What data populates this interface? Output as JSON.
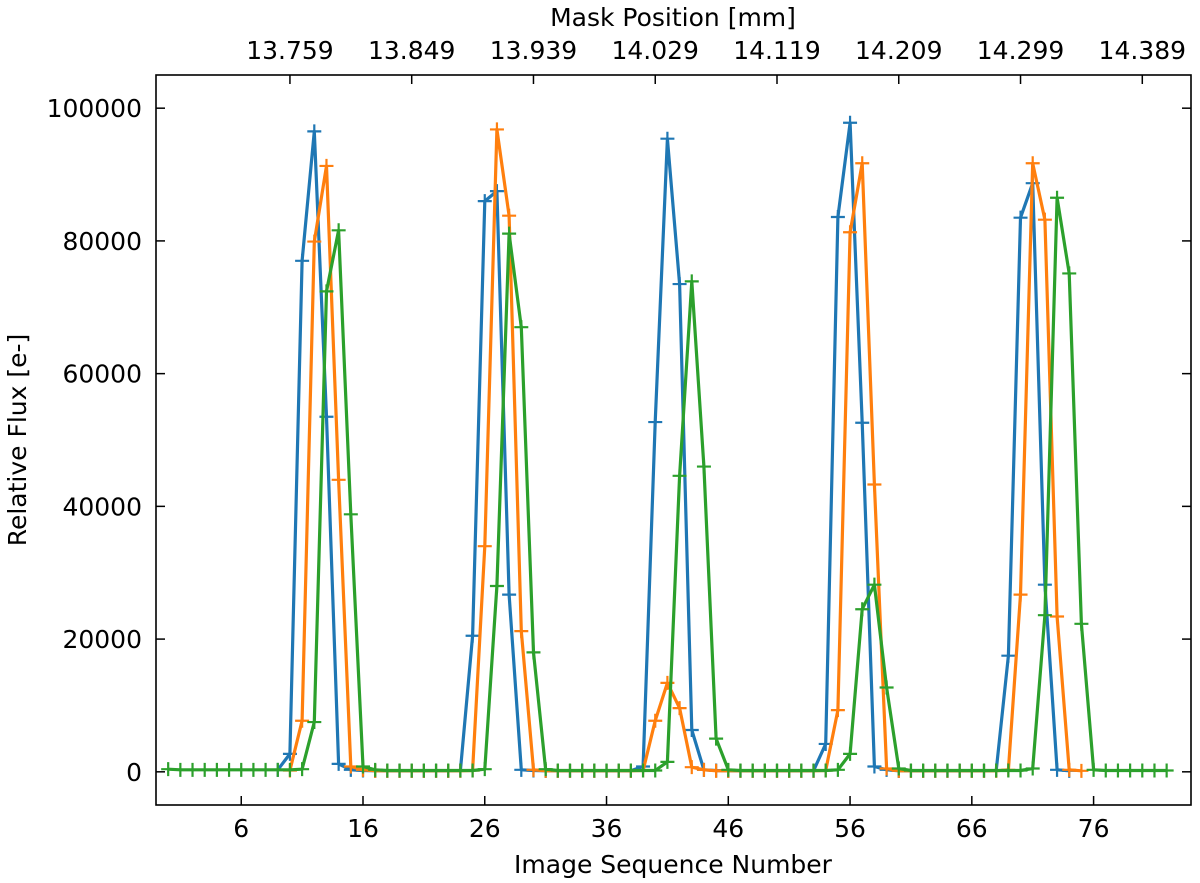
{
  "chart_data": {
    "type": "line",
    "xlabel": "Image Sequence Number",
    "ylabel": "Relative Flux [e-]",
    "top_xlabel": "Mask Position [mm]",
    "xlim": [
      -1,
      84
    ],
    "ylim": [
      -5000,
      105000
    ],
    "grid": false,
    "x_ticks": [
      6,
      16,
      26,
      36,
      46,
      56,
      66,
      76
    ],
    "y_ticks": [
      0,
      20000,
      40000,
      60000,
      80000,
      100000
    ],
    "top_ticks": [
      {
        "x": 10,
        "label": "13.759"
      },
      {
        "x": 20,
        "label": "13.849"
      },
      {
        "x": 30,
        "label": "13.939"
      },
      {
        "x": 40,
        "label": "14.029"
      },
      {
        "x": 50,
        "label": "14.119"
      },
      {
        "x": 60,
        "label": "14.209"
      },
      {
        "x": 70,
        "label": "14.299"
      },
      {
        "x": 80,
        "label": "14.389"
      }
    ],
    "series": [
      {
        "color": "#1f77b4",
        "points": [
          [
            9,
            300
          ],
          [
            10,
            2700
          ],
          [
            11,
            77000
          ],
          [
            12,
            96500
          ],
          [
            13,
            53500
          ],
          [
            14,
            1200
          ],
          [
            15,
            300
          ],
          [
            16,
            200
          ],
          [
            17,
            150
          ],
          [
            18,
            150
          ],
          [
            19,
            150
          ],
          [
            20,
            150
          ],
          [
            21,
            150
          ],
          [
            22,
            150
          ],
          [
            23,
            150
          ],
          [
            24,
            200
          ],
          [
            25,
            20500
          ],
          [
            26,
            86000
          ],
          [
            27,
            87500
          ],
          [
            28,
            26700
          ],
          [
            29,
            300
          ],
          [
            30,
            200
          ],
          [
            31,
            150
          ],
          [
            32,
            150
          ],
          [
            33,
            150
          ],
          [
            34,
            150
          ],
          [
            35,
            150
          ],
          [
            36,
            150
          ],
          [
            37,
            150
          ],
          [
            38,
            150
          ],
          [
            39,
            800
          ],
          [
            40,
            52700
          ],
          [
            41,
            95400
          ],
          [
            42,
            73500
          ],
          [
            43,
            6300
          ],
          [
            44,
            300
          ],
          [
            45,
            200
          ],
          [
            46,
            150
          ],
          [
            47,
            150
          ],
          [
            48,
            150
          ],
          [
            49,
            150
          ],
          [
            50,
            150
          ],
          [
            51,
            150
          ],
          [
            52,
            150
          ],
          [
            53,
            150
          ],
          [
            54,
            4200
          ],
          [
            55,
            83600
          ],
          [
            56,
            97800
          ],
          [
            57,
            52600
          ],
          [
            58,
            800
          ],
          [
            59,
            300
          ],
          [
            60,
            150
          ],
          [
            61,
            150
          ],
          [
            62,
            150
          ],
          [
            63,
            150
          ],
          [
            64,
            150
          ],
          [
            65,
            150
          ],
          [
            66,
            150
          ],
          [
            67,
            150
          ],
          [
            68,
            200
          ],
          [
            69,
            17500
          ],
          [
            70,
            83500
          ],
          [
            71,
            88700
          ],
          [
            72,
            28200
          ],
          [
            73,
            300
          ],
          [
            74,
            150
          ]
        ]
      },
      {
        "color": "#ff7f0e",
        "points": [
          [
            10,
            200
          ],
          [
            11,
            7700
          ],
          [
            12,
            79900
          ],
          [
            13,
            91300
          ],
          [
            14,
            44000
          ],
          [
            15,
            800
          ],
          [
            16,
            300
          ],
          [
            17,
            150
          ],
          [
            18,
            150
          ],
          [
            19,
            150
          ],
          [
            20,
            150
          ],
          [
            21,
            150
          ],
          [
            22,
            150
          ],
          [
            23,
            150
          ],
          [
            24,
            150
          ],
          [
            25,
            200
          ],
          [
            26,
            34000
          ],
          [
            27,
            96800
          ],
          [
            28,
            83800
          ],
          [
            29,
            21200
          ],
          [
            30,
            300
          ],
          [
            31,
            150
          ],
          [
            32,
            150
          ],
          [
            33,
            150
          ],
          [
            34,
            150
          ],
          [
            35,
            150
          ],
          [
            36,
            150
          ],
          [
            37,
            150
          ],
          [
            38,
            150
          ],
          [
            39,
            200
          ],
          [
            40,
            7700
          ],
          [
            41,
            13400
          ],
          [
            42,
            9600
          ],
          [
            43,
            700
          ],
          [
            44,
            300
          ],
          [
            45,
            150
          ],
          [
            46,
            150
          ],
          [
            47,
            150
          ],
          [
            48,
            150
          ],
          [
            49,
            150
          ],
          [
            50,
            150
          ],
          [
            51,
            150
          ],
          [
            52,
            150
          ],
          [
            53,
            150
          ],
          [
            54,
            200
          ],
          [
            55,
            9300
          ],
          [
            56,
            81300
          ],
          [
            57,
            91700
          ],
          [
            58,
            43300
          ],
          [
            59,
            500
          ],
          [
            60,
            150
          ],
          [
            61,
            150
          ],
          [
            62,
            150
          ],
          [
            63,
            150
          ],
          [
            64,
            150
          ],
          [
            65,
            150
          ],
          [
            66,
            150
          ],
          [
            67,
            150
          ],
          [
            68,
            150
          ],
          [
            69,
            300
          ],
          [
            70,
            26700
          ],
          [
            71,
            91700
          ],
          [
            72,
            83200
          ],
          [
            73,
            23400
          ],
          [
            74,
            300
          ],
          [
            75,
            150
          ]
        ]
      },
      {
        "color": "#2ca02c",
        "points": [
          [
            0,
            400
          ],
          [
            1,
            300
          ],
          [
            2,
            300
          ],
          [
            3,
            300
          ],
          [
            4,
            300
          ],
          [
            5,
            300
          ],
          [
            6,
            300
          ],
          [
            7,
            300
          ],
          [
            8,
            300
          ],
          [
            9,
            300
          ],
          [
            10,
            300
          ],
          [
            11,
            400
          ],
          [
            12,
            7500
          ],
          [
            13,
            72400
          ],
          [
            14,
            81600
          ],
          [
            15,
            38800
          ],
          [
            16,
            800
          ],
          [
            17,
            300
          ],
          [
            18,
            200
          ],
          [
            19,
            200
          ],
          [
            20,
            200
          ],
          [
            21,
            200
          ],
          [
            22,
            200
          ],
          [
            23,
            200
          ],
          [
            24,
            200
          ],
          [
            25,
            200
          ],
          [
            26,
            400
          ],
          [
            27,
            28000
          ],
          [
            28,
            81100
          ],
          [
            29,
            67000
          ],
          [
            30,
            18000
          ],
          [
            31,
            400
          ],
          [
            32,
            200
          ],
          [
            33,
            200
          ],
          [
            34,
            200
          ],
          [
            35,
            200
          ],
          [
            36,
            200
          ],
          [
            37,
            200
          ],
          [
            38,
            200
          ],
          [
            39,
            200
          ],
          [
            40,
            200
          ],
          [
            41,
            1500
          ],
          [
            42,
            44600
          ],
          [
            43,
            73900
          ],
          [
            44,
            46000
          ],
          [
            45,
            5000
          ],
          [
            46,
            300
          ],
          [
            47,
            200
          ],
          [
            48,
            200
          ],
          [
            49,
            200
          ],
          [
            50,
            200
          ],
          [
            51,
            200
          ],
          [
            52,
            200
          ],
          [
            53,
            200
          ],
          [
            54,
            200
          ],
          [
            55,
            300
          ],
          [
            56,
            2700
          ],
          [
            57,
            24500
          ],
          [
            58,
            28200
          ],
          [
            59,
            12700
          ],
          [
            60,
            500
          ],
          [
            61,
            200
          ],
          [
            62,
            200
          ],
          [
            63,
            200
          ],
          [
            64,
            200
          ],
          [
            65,
            200
          ],
          [
            66,
            200
          ],
          [
            67,
            200
          ],
          [
            68,
            200
          ],
          [
            69,
            200
          ],
          [
            70,
            200
          ],
          [
            71,
            500
          ],
          [
            72,
            23600
          ],
          [
            73,
            86500
          ],
          [
            74,
            75100
          ],
          [
            75,
            22300
          ],
          [
            76,
            300
          ],
          [
            77,
            200
          ],
          [
            78,
            200
          ],
          [
            79,
            200
          ],
          [
            80,
            200
          ],
          [
            81,
            200
          ],
          [
            82,
            200
          ]
        ]
      }
    ]
  }
}
